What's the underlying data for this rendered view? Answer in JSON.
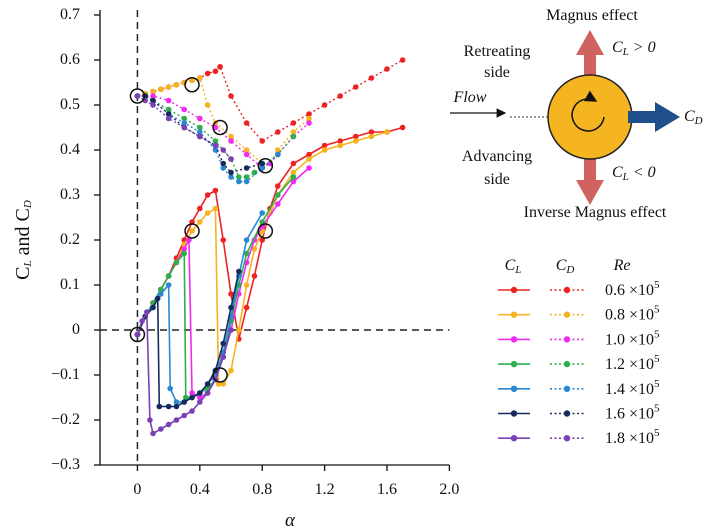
{
  "chart_data": {
    "type": "line",
    "x_label": "α",
    "y_label": "C_L and C_D",
    "xlim": [
      -0.24,
      2.0
    ],
    "ylim": [
      -0.3,
      0.7
    ],
    "xticks": [
      0,
      0.4,
      0.8,
      1.2,
      1.6,
      {
        "value": 2,
        "label": "2.0"
      }
    ],
    "yticks": [
      {
        "value": -0.3,
        "label": "−0.3"
      },
      {
        "value": -0.2,
        "label": "−0.2"
      },
      {
        "value": -0.1,
        "label": "−0.1"
      },
      0,
      0.1,
      0.2,
      0.3,
      0.4,
      0.5,
      0.6,
      0.7
    ],
    "zero_lines": true,
    "legend_headers": [
      "C_L",
      "C_D",
      "Re"
    ],
    "series": [
      {
        "name": "0.6 ×10^5",
        "color": "#ee2222",
        "cl": {
          "x": [
            0,
            0.05,
            0.1,
            0.15,
            0.2,
            0.25,
            0.3,
            0.35,
            0.4,
            0.45,
            0.5,
            0.55,
            0.6,
            0.65,
            0.7,
            0.75,
            0.8,
            0.85,
            0.9,
            1.0,
            1.1,
            1.2,
            1.3,
            1.4,
            1.5,
            1.6,
            1.7
          ],
          "values": [
            -0.01,
            0.03,
            0.06,
            0.09,
            0.12,
            0.16,
            0.2,
            0.24,
            0.27,
            0.3,
            0.31,
            0.2,
            0.08,
            -0.02,
            0.05,
            0.12,
            0.2,
            0.27,
            0.32,
            0.37,
            0.39,
            0.41,
            0.42,
            0.43,
            0.44,
            0.44,
            0.45
          ]
        },
        "cd": {
          "x": [
            0,
            0.05,
            0.1,
            0.15,
            0.2,
            0.25,
            0.3,
            0.35,
            0.4,
            0.45,
            0.5,
            0.53,
            0.6,
            0.7,
            0.8,
            0.9,
            1.0,
            1.1,
            1.2,
            1.3,
            1.4,
            1.5,
            1.6,
            1.7
          ],
          "values": [
            0.52,
            0.525,
            0.53,
            0.535,
            0.54,
            0.545,
            0.55,
            0.555,
            0.56,
            0.57,
            0.575,
            0.585,
            0.52,
            0.46,
            0.42,
            0.44,
            0.46,
            0.48,
            0.5,
            0.52,
            0.54,
            0.56,
            0.58,
            0.6
          ]
        }
      },
      {
        "name": "0.8 ×10^5",
        "color": "#f5b320",
        "cl": {
          "x": [
            0,
            0.05,
            0.1,
            0.15,
            0.2,
            0.25,
            0.3,
            0.35,
            0.4,
            0.45,
            0.5,
            0.52,
            0.55,
            0.6,
            0.65,
            0.7,
            0.75,
            0.8,
            0.85,
            0.9,
            1.0,
            1.1,
            1.2,
            1.3,
            1.4,
            1.5,
            1.6
          ],
          "values": [
            -0.01,
            0.03,
            0.06,
            0.09,
            0.12,
            0.15,
            0.19,
            0.22,
            0.24,
            0.26,
            0.27,
            -0.12,
            -0.12,
            -0.09,
            0,
            0.1,
            0.18,
            0.22,
            0.26,
            0.3,
            0.35,
            0.38,
            0.4,
            0.41,
            0.42,
            0.43,
            0.44
          ]
        },
        "cd": {
          "x": [
            0,
            0.05,
            0.1,
            0.15,
            0.2,
            0.25,
            0.3,
            0.35,
            0.4,
            0.45,
            0.5,
            0.6,
            0.7,
            0.8,
            0.85,
            0.9,
            1.0,
            1.1
          ],
          "values": [
            0.52,
            0.525,
            0.53,
            0.535,
            0.54,
            0.545,
            0.55,
            0.555,
            0.56,
            0.5,
            0.46,
            0.43,
            0.4,
            0.37,
            0.37,
            0.4,
            0.44,
            0.47
          ]
        }
      },
      {
        "name": "1.0 ×10^5",
        "color": "#f02af0",
        "cl": {
          "x": [
            0,
            0.05,
            0.1,
            0.15,
            0.2,
            0.25,
            0.3,
            0.33,
            0.35,
            0.4,
            0.45,
            0.5,
            0.55,
            0.6,
            0.65,
            0.7,
            0.75,
            0.8,
            0.9,
            1.0,
            1.1
          ],
          "values": [
            -0.01,
            0.03,
            0.06,
            0.09,
            0.12,
            0.15,
            0.18,
            0.2,
            -0.14,
            -0.15,
            -0.14,
            -0.11,
            -0.06,
            0,
            0.08,
            0.15,
            0.2,
            0.23,
            0.28,
            0.33,
            0.36
          ]
        },
        "cd": {
          "x": [
            0,
            0.05,
            0.1,
            0.2,
            0.3,
            0.4,
            0.5,
            0.6,
            0.7,
            0.8,
            0.85,
            0.9,
            1.0,
            1.1
          ],
          "values": [
            0.52,
            0.52,
            0.52,
            0.51,
            0.49,
            0.47,
            0.45,
            0.42,
            0.39,
            0.36,
            0.37,
            0.39,
            0.43,
            0.46
          ]
        }
      },
      {
        "name": "1.2 ×10^5",
        "color": "#2db04b",
        "cl": {
          "x": [
            0,
            0.05,
            0.1,
            0.15,
            0.2,
            0.25,
            0.3,
            0.31,
            0.35,
            0.4,
            0.45,
            0.5,
            0.55,
            0.6,
            0.65,
            0.7,
            0.8,
            0.9,
            1.0
          ],
          "values": [
            -0.01,
            0.03,
            0.06,
            0.09,
            0.12,
            0.15,
            0.17,
            -0.15,
            -0.15,
            -0.14,
            -0.13,
            -0.11,
            -0.06,
            0.02,
            0.1,
            0.17,
            0.24,
            0.3,
            0.34
          ]
        },
        "cd": {
          "x": [
            0,
            0.05,
            0.1,
            0.2,
            0.3,
            0.4,
            0.5,
            0.6,
            0.65,
            0.7,
            0.75,
            0.8,
            0.9,
            1.0
          ],
          "values": [
            0.52,
            0.52,
            0.51,
            0.49,
            0.47,
            0.45,
            0.42,
            0.38,
            0.34,
            0.34,
            0.35,
            0.36,
            0.39,
            0.43
          ]
        }
      },
      {
        "name": "1.4 ×10^5",
        "color": "#2a88d4",
        "cl": {
          "x": [
            0,
            0.05,
            0.1,
            0.15,
            0.2,
            0.21,
            0.25,
            0.3,
            0.35,
            0.4,
            0.45,
            0.5,
            0.55,
            0.6,
            0.65,
            0.7,
            0.8
          ],
          "values": [
            -0.01,
            0.03,
            0.05,
            0.08,
            0.1,
            -0.13,
            -0.16,
            -0.16,
            -0.15,
            -0.14,
            -0.12,
            -0.1,
            -0.05,
            0.03,
            0.12,
            0.2,
            0.26
          ]
        },
        "cd": {
          "x": [
            0,
            0.05,
            0.1,
            0.2,
            0.3,
            0.4,
            0.5,
            0.55,
            0.6,
            0.65,
            0.7,
            0.8,
            0.9
          ],
          "values": [
            0.52,
            0.52,
            0.51,
            0.48,
            0.46,
            0.44,
            0.4,
            0.36,
            0.34,
            0.33,
            0.33,
            0.36,
            0.39
          ]
        }
      },
      {
        "name": "1.6 ×10^5",
        "color": "#172a5e",
        "cl": {
          "x": [
            0,
            0.05,
            0.1,
            0.13,
            0.14,
            0.2,
            0.25,
            0.3,
            0.35,
            0.4,
            0.45,
            0.5,
            0.55,
            0.6,
            0.65
          ],
          "values": [
            -0.01,
            0.03,
            0.05,
            0.07,
            -0.17,
            -0.17,
            -0.17,
            -0.16,
            -0.15,
            -0.14,
            -0.12,
            -0.09,
            -0.03,
            0.05,
            0.13
          ]
        },
        "cd": {
          "x": [
            0,
            0.05,
            0.1,
            0.2,
            0.3,
            0.4,
            0.5,
            0.55,
            0.6,
            0.7,
            0.8
          ],
          "values": [
            0.52,
            0.52,
            0.51,
            0.48,
            0.45,
            0.43,
            0.41,
            0.37,
            0.35,
            0.36,
            0.37
          ]
        }
      },
      {
        "name": "1.8 ×10^5",
        "color": "#7b40b5",
        "cl": {
          "x": [
            0,
            0.03,
            0.06,
            0.08,
            0.1,
            0.15,
            0.2,
            0.25,
            0.3,
            0.35,
            0.4,
            0.45,
            0.5,
            0.55,
            0.6
          ],
          "values": [
            -0.01,
            0.02,
            0.04,
            -0.2,
            -0.23,
            -0.22,
            -0.21,
            -0.2,
            -0.19,
            -0.18,
            -0.16,
            -0.14,
            -0.11,
            -0.06,
            0
          ]
        },
        "cd": {
          "x": [
            0,
            0.05,
            0.1,
            0.2,
            0.3,
            0.4,
            0.5,
            0.55,
            0.6
          ],
          "values": [
            0.52,
            0.51,
            0.5,
            0.47,
            0.45,
            0.43,
            0.41,
            0.4,
            0.38
          ]
        }
      }
    ],
    "markers": {
      "x": [
        0,
        0.35,
        0.53,
        0.82,
        0,
        0.35,
        0.53,
        0.82
      ],
      "y": [
        0.52,
        0.545,
        0.45,
        0.365,
        -0.01,
        0.22,
        -0.1,
        0.22
      ]
    }
  },
  "diagram": {
    "magnus": "Magnus effect",
    "retreating": [
      "Retreating",
      "side"
    ],
    "flow": "Flow",
    "cl_pos": "C_L > 0",
    "cd": "C_D",
    "advancing": [
      "Advancing",
      "side"
    ],
    "cl_neg": "C_L < 0",
    "inverse": "Inverse Magnus effect"
  }
}
